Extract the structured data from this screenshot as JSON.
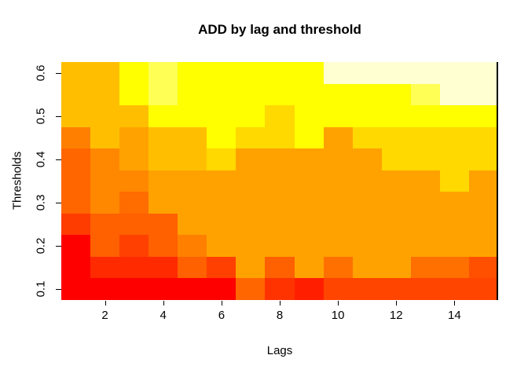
{
  "chart_data": {
    "type": "heatmap",
    "title": "ADD by lag and threshold",
    "xlabel": "Lags",
    "ylabel": "Thresholds",
    "x_ticks": [
      2,
      4,
      6,
      8,
      10,
      12,
      14
    ],
    "y_ticks": [
      0.1,
      0.2,
      0.3,
      0.4,
      0.5,
      0.6
    ],
    "x_categories": [
      1,
      2,
      3,
      4,
      5,
      6,
      7,
      8,
      9,
      10,
      11,
      12,
      13,
      14,
      15
    ],
    "x_range": [
      0.5,
      15.5
    ],
    "y_range": [
      0.075,
      0.625
    ],
    "grid": "off",
    "legend": "none",
    "palette": [
      "#FF0000",
      "#FF2A00",
      "#FF4000",
      "#FF6000",
      "#FF8000",
      "#FFA200",
      "#FFBF00",
      "#FFD900",
      "#FFFF00",
      "#FFFF55",
      "#FFFFD2"
    ],
    "rows_top_to_bottom": [
      {
        "threshold": 0.6,
        "colors": [
          "#FFBF00",
          "#FFBF00",
          "#FFFF00",
          "#FFFF55",
          "#FFFF00",
          "#FFFF00",
          "#FFFF00",
          "#FFFF00",
          "#FFFF00",
          "#FFFFD2",
          "#FFFFD2",
          "#FFFFD2",
          "#FFFFD2",
          "#FFFFD2",
          "#FFFFD2"
        ]
      },
      {
        "threshold": 0.55,
        "colors": [
          "#FFBF00",
          "#FFBF00",
          "#FFFF00",
          "#FFFF55",
          "#FFFF00",
          "#FFFF00",
          "#FFFF00",
          "#FFFF00",
          "#FFFF00",
          "#FFFF00",
          "#FFFF00",
          "#FFFF00",
          "#FFFF55",
          "#FFFFD2",
          "#FFFFD2"
        ]
      },
      {
        "threshold": 0.5,
        "colors": [
          "#FFBF00",
          "#FFBF00",
          "#FFBF00",
          "#FFFF00",
          "#FFFF00",
          "#FFFF00",
          "#FFFF00",
          "#FFD900",
          "#FFFF00",
          "#FFFF00",
          "#FFFF00",
          "#FFFF00",
          "#FFFF00",
          "#FFFF00",
          "#FFFF00"
        ]
      },
      {
        "threshold": 0.45,
        "colors": [
          "#FF8000",
          "#FFBF00",
          "#FFA200",
          "#FFBF00",
          "#FFBF00",
          "#FFFF00",
          "#FFD900",
          "#FFD900",
          "#FFFF00",
          "#FFA200",
          "#FFD900",
          "#FFD900",
          "#FFD900",
          "#FFD900",
          "#FFD900"
        ]
      },
      {
        "threshold": 0.4,
        "colors": [
          "#FF6600",
          "#FF8800",
          "#FFA200",
          "#FFBF00",
          "#FFBF00",
          "#FFD900",
          "#FFA200",
          "#FFA200",
          "#FFA200",
          "#FFA200",
          "#FFA200",
          "#FFD900",
          "#FFD900",
          "#FFD900",
          "#FFD900"
        ]
      },
      {
        "threshold": 0.35,
        "colors": [
          "#FF6600",
          "#FF8800",
          "#FF8800",
          "#FFA200",
          "#FFA200",
          "#FFA200",
          "#FFA200",
          "#FFA200",
          "#FFA200",
          "#FFA200",
          "#FFA200",
          "#FFA200",
          "#FFA200",
          "#FFD900",
          "#FFA200"
        ]
      },
      {
        "threshold": 0.3,
        "colors": [
          "#FF6600",
          "#FF8800",
          "#FF6C00",
          "#FFA200",
          "#FFA200",
          "#FFA200",
          "#FFA200",
          "#FFA200",
          "#FFA200",
          "#FFA200",
          "#FFA200",
          "#FFA200",
          "#FFA200",
          "#FFA200",
          "#FFA200"
        ]
      },
      {
        "threshold": 0.25,
        "colors": [
          "#FF3C00",
          "#FF6000",
          "#FF6000",
          "#FF6000",
          "#FFA200",
          "#FFA200",
          "#FFA200",
          "#FFA200",
          "#FFA200",
          "#FFA200",
          "#FFA200",
          "#FFA200",
          "#FFA200",
          "#FFA200",
          "#FFA200"
        ]
      },
      {
        "threshold": 0.2,
        "colors": [
          "#FF0000",
          "#FF6000",
          "#FF4000",
          "#FF6000",
          "#FF8000",
          "#FFA200",
          "#FFA200",
          "#FFA200",
          "#FFA200",
          "#FFA200",
          "#FFA200",
          "#FFA200",
          "#FFA200",
          "#FFA200",
          "#FFA200"
        ]
      },
      {
        "threshold": 0.15,
        "colors": [
          "#FF0000",
          "#FF2A00",
          "#FF2A00",
          "#FF2A00",
          "#FF6000",
          "#FF4000",
          "#FFA200",
          "#FF6000",
          "#FFA200",
          "#FF7000",
          "#FFA200",
          "#FFA200",
          "#FF7000",
          "#FF7000",
          "#FF5000"
        ]
      },
      {
        "threshold": 0.1,
        "colors": [
          "#FF0000",
          "#FF0000",
          "#FF0000",
          "#FF0000",
          "#FF0000",
          "#FF0000",
          "#FF6600",
          "#FF3300",
          "#FF1F00",
          "#FF4500",
          "#FF4500",
          "#FF4500",
          "#FF4500",
          "#FF4500",
          "#FF4500"
        ]
      }
    ]
  }
}
